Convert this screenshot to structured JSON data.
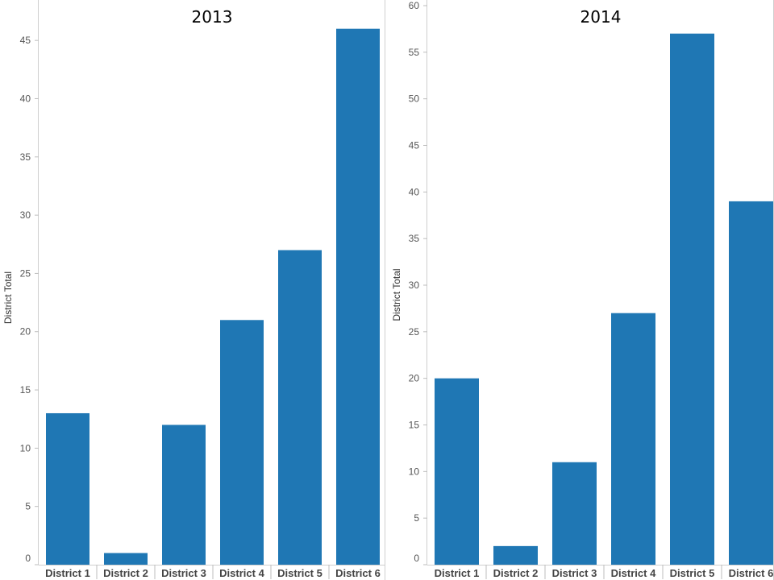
{
  "chart_data": [
    {
      "type": "bar",
      "title": "2013",
      "ylabel": "District Total",
      "categories": [
        "District 1",
        "District 2",
        "District 3",
        "District 4",
        "District 5",
        "District 6"
      ],
      "values": [
        13,
        1,
        12,
        21,
        27,
        46
      ],
      "ylim": [
        0,
        47.5
      ],
      "yticks": [
        0,
        5,
        10,
        15,
        20,
        25,
        30,
        35,
        40,
        45
      ],
      "color": "#1f77b4",
      "grid": false
    },
    {
      "type": "bar",
      "title": "2014",
      "ylabel": "District Total",
      "categories": [
        "District 1",
        "District 2",
        "District 3",
        "District 4",
        "District 5",
        "District 6"
      ],
      "values": [
        20,
        2,
        11,
        27,
        57,
        39
      ],
      "ylim": [
        0,
        60
      ],
      "yticks": [
        0,
        5,
        10,
        15,
        20,
        25,
        30,
        35,
        40,
        45,
        50,
        55,
        60
      ],
      "color": "#1f77b4",
      "grid": false
    }
  ]
}
